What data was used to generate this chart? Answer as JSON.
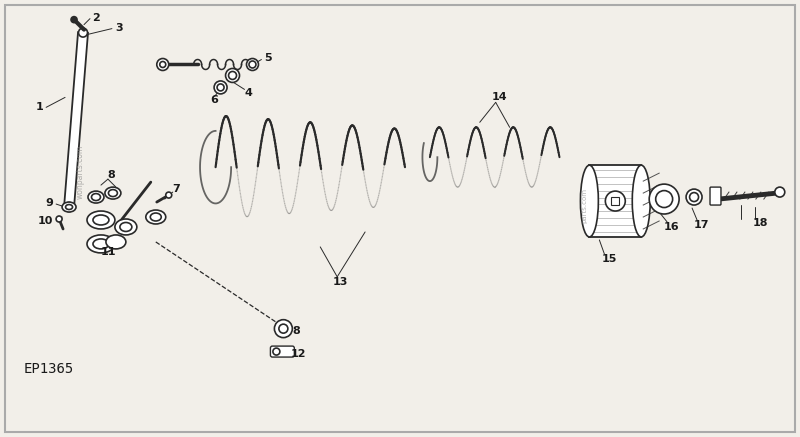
{
  "bg_color": "#f2efe9",
  "line_color": "#2a2a2a",
  "text_color": "#1a1a1a",
  "diagram_label": "EP1365",
  "watermark": "wonparts.com",
  "watermark2": "parts.com"
}
